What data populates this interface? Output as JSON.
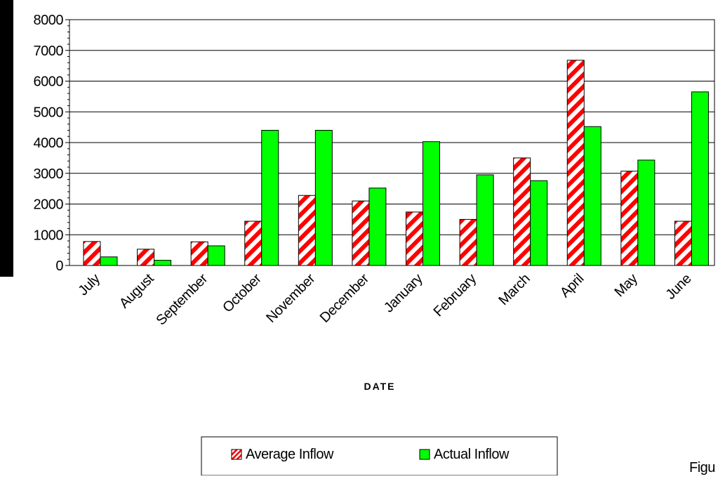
{
  "chart_data": {
    "type": "bar",
    "title": "",
    "xlabel": "DATE",
    "ylabel": "",
    "ylim": [
      0,
      8000
    ],
    "yticks": [
      0,
      1000,
      2000,
      3000,
      4000,
      5000,
      6000,
      7000,
      8000
    ],
    "ytick_labels": [
      "0",
      "1000",
      "2000",
      "3000",
      "4000",
      "5000",
      "6000",
      "7000",
      "8000"
    ],
    "grid": true,
    "legend_position": "bottom",
    "categories": [
      "July",
      "August",
      "September",
      "October",
      "November",
      "December",
      "January",
      "February",
      "March",
      "April",
      "May",
      "June"
    ],
    "series": [
      {
        "name": "Average Inflow",
        "values": [
          780,
          530,
          770,
          1440,
          2280,
          2100,
          1740,
          1500,
          3500,
          6680,
          3070,
          1440
        ],
        "fill": "red diagonal hatch",
        "color": "#ff0000"
      },
      {
        "name": "Actual Inflow",
        "values": [
          280,
          170,
          640,
          4400,
          4400,
          2520,
          4030,
          2950,
          2760,
          4520,
          3430,
          5650
        ],
        "fill": "solid",
        "color": "#00ff00"
      }
    ]
  },
  "caption_fragment": "Figu"
}
